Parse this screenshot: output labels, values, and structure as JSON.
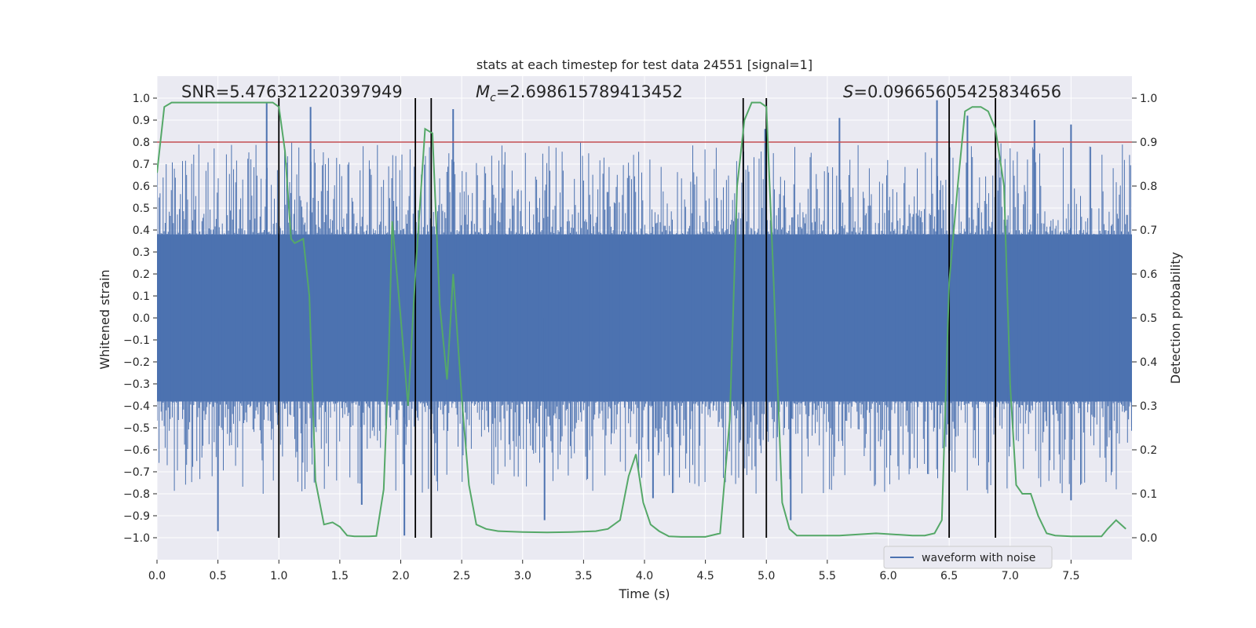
{
  "chart_data": {
    "type": "line",
    "title": "stats at each timestep for test data 24551 [signal=1]",
    "xlabel": "Time (s)",
    "ylabel": "Whitened strain",
    "y2label": "Detection probability",
    "xlim": [
      0.0,
      8.0
    ],
    "ylim": [
      -1.1,
      1.1
    ],
    "y2lim": [
      -0.05,
      1.05
    ],
    "xticks": [
      "0.0",
      "0.5",
      "1.0",
      "1.5",
      "2.0",
      "2.5",
      "3.0",
      "3.5",
      "4.0",
      "4.5",
      "5.0",
      "5.5",
      "6.0",
      "6.5",
      "7.0",
      "7.5"
    ],
    "yticks": [
      "1.0",
      "0.9",
      "0.8",
      "0.7",
      "0.6",
      "0.5",
      "0.4",
      "0.3",
      "0.2",
      "0.1",
      "0.0",
      "−0.1",
      "−0.2",
      "−0.3",
      "−0.4",
      "−0.5",
      "−0.6",
      "−0.7",
      "−0.8",
      "−0.9",
      "−1.0"
    ],
    "y2ticks": [
      "1.0",
      "0.9",
      "0.8",
      "0.7",
      "0.6",
      "0.5",
      "0.4",
      "0.3",
      "0.2",
      "0.1",
      "0.0"
    ],
    "annotations": {
      "snr": "SNR=5.476321220397949",
      "mc_prefix": "M",
      "mc_sub": "c",
      "mc_value": "=2.698615789413452",
      "s_prefix": "S",
      "s_value": "=0.09665605425834656"
    },
    "legend": {
      "label": "waveform with noise",
      "placement": "lower-right"
    },
    "threshold_y2": 0.9,
    "threshold_color": "#c44e52",
    "event_lines_x": [
      1.0,
      2.12,
      2.25,
      4.81,
      5.0,
      6.5,
      6.88
    ],
    "event_lines_color": "#000000",
    "event_lines_ylim": [
      -1.0,
      1.0
    ],
    "series": [
      {
        "name": "waveform with noise",
        "color": "#4c72b0",
        "style": "noise",
        "envelope_core": 0.38,
        "spikes_high": [
          [
            0.9,
            0.98
          ],
          [
            1.26,
            0.96
          ],
          [
            2.43,
            0.95
          ],
          [
            4.99,
            0.86
          ],
          [
            6.4,
            0.99
          ],
          [
            5.6,
            0.91
          ],
          [
            6.65,
            0.92
          ],
          [
            7.2,
            0.9
          ],
          [
            7.5,
            0.88
          ]
        ],
        "spikes_low": [
          [
            0.5,
            -0.97
          ],
          [
            2.03,
            -0.99
          ],
          [
            3.18,
            -0.92
          ],
          [
            4.07,
            -0.82
          ],
          [
            5.2,
            -0.92
          ],
          [
            7.5,
            -0.83
          ],
          [
            1.68,
            -0.85
          ]
        ]
      },
      {
        "name": "detection probability",
        "color": "#55a868",
        "axis": "right",
        "x": [
          0.0,
          0.06,
          0.12,
          0.2,
          0.3,
          0.4,
          0.5,
          0.6,
          0.7,
          0.8,
          0.9,
          0.95,
          1.0,
          1.05,
          1.1,
          1.13,
          1.2,
          1.25,
          1.3,
          1.37,
          1.44,
          1.5,
          1.56,
          1.62,
          1.68,
          1.74,
          1.8,
          1.86,
          1.9,
          1.93,
          2.0,
          2.06,
          2.12,
          2.2,
          2.26,
          2.32,
          2.38,
          2.43,
          2.5,
          2.56,
          2.62,
          2.7,
          2.8,
          3.0,
          3.2,
          3.4,
          3.6,
          3.7,
          3.8,
          3.87,
          3.93,
          3.99,
          4.05,
          4.12,
          4.2,
          4.3,
          4.5,
          4.62,
          4.7,
          4.76,
          4.82,
          4.88,
          4.95,
          5.0,
          5.06,
          5.13,
          5.19,
          5.25,
          5.35,
          5.6,
          5.9,
          6.2,
          6.3,
          6.38,
          6.44,
          6.5,
          6.57,
          6.63,
          6.69,
          6.76,
          6.82,
          6.88,
          6.95,
          7.0,
          7.05,
          7.1,
          7.17,
          7.23,
          7.3,
          7.37,
          7.5,
          7.65,
          7.75,
          7.8,
          7.87,
          7.95
        ],
        "y": [
          0.83,
          0.98,
          0.99,
          0.99,
          0.99,
          0.99,
          0.99,
          0.99,
          0.99,
          0.99,
          0.99,
          0.99,
          0.98,
          0.88,
          0.68,
          0.67,
          0.68,
          0.55,
          0.13,
          0.03,
          0.035,
          0.025,
          0.005,
          0.003,
          0.003,
          0.003,
          0.004,
          0.11,
          0.4,
          0.72,
          0.5,
          0.3,
          0.6,
          0.93,
          0.92,
          0.53,
          0.36,
          0.6,
          0.32,
          0.12,
          0.03,
          0.02,
          0.015,
          0.013,
          0.012,
          0.013,
          0.015,
          0.02,
          0.04,
          0.14,
          0.19,
          0.08,
          0.03,
          0.015,
          0.003,
          0.002,
          0.002,
          0.01,
          0.27,
          0.8,
          0.95,
          0.99,
          0.99,
          0.98,
          0.58,
          0.08,
          0.02,
          0.005,
          0.005,
          0.005,
          0.01,
          0.005,
          0.005,
          0.01,
          0.04,
          0.58,
          0.8,
          0.97,
          0.98,
          0.98,
          0.97,
          0.93,
          0.8,
          0.35,
          0.12,
          0.1,
          0.1,
          0.05,
          0.01,
          0.005,
          0.003,
          0.003,
          0.003,
          0.02,
          0.04,
          0.02
        ]
      }
    ]
  }
}
